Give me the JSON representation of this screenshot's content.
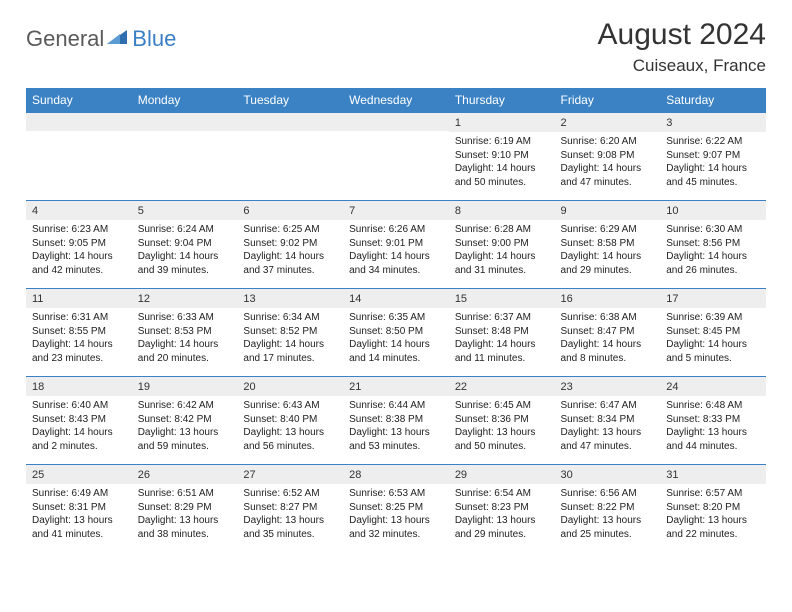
{
  "brand": {
    "part1": "General",
    "part2": "Blue"
  },
  "title": "August 2024",
  "location": "Cuiseaux, France",
  "colors": {
    "header_bg": "#3b82c4",
    "header_fg": "#ffffff",
    "daynum_bg": "#eeeeee",
    "cell_border": "#3b82c4",
    "text": "#222222",
    "brand_gray": "#5a5a5a",
    "brand_blue": "#3b7fc4"
  },
  "weekdays": [
    "Sunday",
    "Monday",
    "Tuesday",
    "Wednesday",
    "Thursday",
    "Friday",
    "Saturday"
  ],
  "weeks": [
    [
      {
        "n": "",
        "sr": "",
        "ss": "",
        "dl": ""
      },
      {
        "n": "",
        "sr": "",
        "ss": "",
        "dl": ""
      },
      {
        "n": "",
        "sr": "",
        "ss": "",
        "dl": ""
      },
      {
        "n": "",
        "sr": "",
        "ss": "",
        "dl": ""
      },
      {
        "n": "1",
        "sr": "Sunrise: 6:19 AM",
        "ss": "Sunset: 9:10 PM",
        "dl": "Daylight: 14 hours and 50 minutes."
      },
      {
        "n": "2",
        "sr": "Sunrise: 6:20 AM",
        "ss": "Sunset: 9:08 PM",
        "dl": "Daylight: 14 hours and 47 minutes."
      },
      {
        "n": "3",
        "sr": "Sunrise: 6:22 AM",
        "ss": "Sunset: 9:07 PM",
        "dl": "Daylight: 14 hours and 45 minutes."
      }
    ],
    [
      {
        "n": "4",
        "sr": "Sunrise: 6:23 AM",
        "ss": "Sunset: 9:05 PM",
        "dl": "Daylight: 14 hours and 42 minutes."
      },
      {
        "n": "5",
        "sr": "Sunrise: 6:24 AM",
        "ss": "Sunset: 9:04 PM",
        "dl": "Daylight: 14 hours and 39 minutes."
      },
      {
        "n": "6",
        "sr": "Sunrise: 6:25 AM",
        "ss": "Sunset: 9:02 PM",
        "dl": "Daylight: 14 hours and 37 minutes."
      },
      {
        "n": "7",
        "sr": "Sunrise: 6:26 AM",
        "ss": "Sunset: 9:01 PM",
        "dl": "Daylight: 14 hours and 34 minutes."
      },
      {
        "n": "8",
        "sr": "Sunrise: 6:28 AM",
        "ss": "Sunset: 9:00 PM",
        "dl": "Daylight: 14 hours and 31 minutes."
      },
      {
        "n": "9",
        "sr": "Sunrise: 6:29 AM",
        "ss": "Sunset: 8:58 PM",
        "dl": "Daylight: 14 hours and 29 minutes."
      },
      {
        "n": "10",
        "sr": "Sunrise: 6:30 AM",
        "ss": "Sunset: 8:56 PM",
        "dl": "Daylight: 14 hours and 26 minutes."
      }
    ],
    [
      {
        "n": "11",
        "sr": "Sunrise: 6:31 AM",
        "ss": "Sunset: 8:55 PM",
        "dl": "Daylight: 14 hours and 23 minutes."
      },
      {
        "n": "12",
        "sr": "Sunrise: 6:33 AM",
        "ss": "Sunset: 8:53 PM",
        "dl": "Daylight: 14 hours and 20 minutes."
      },
      {
        "n": "13",
        "sr": "Sunrise: 6:34 AM",
        "ss": "Sunset: 8:52 PM",
        "dl": "Daylight: 14 hours and 17 minutes."
      },
      {
        "n": "14",
        "sr": "Sunrise: 6:35 AM",
        "ss": "Sunset: 8:50 PM",
        "dl": "Daylight: 14 hours and 14 minutes."
      },
      {
        "n": "15",
        "sr": "Sunrise: 6:37 AM",
        "ss": "Sunset: 8:48 PM",
        "dl": "Daylight: 14 hours and 11 minutes."
      },
      {
        "n": "16",
        "sr": "Sunrise: 6:38 AM",
        "ss": "Sunset: 8:47 PM",
        "dl": "Daylight: 14 hours and 8 minutes."
      },
      {
        "n": "17",
        "sr": "Sunrise: 6:39 AM",
        "ss": "Sunset: 8:45 PM",
        "dl": "Daylight: 14 hours and 5 minutes."
      }
    ],
    [
      {
        "n": "18",
        "sr": "Sunrise: 6:40 AM",
        "ss": "Sunset: 8:43 PM",
        "dl": "Daylight: 14 hours and 2 minutes."
      },
      {
        "n": "19",
        "sr": "Sunrise: 6:42 AM",
        "ss": "Sunset: 8:42 PM",
        "dl": "Daylight: 13 hours and 59 minutes."
      },
      {
        "n": "20",
        "sr": "Sunrise: 6:43 AM",
        "ss": "Sunset: 8:40 PM",
        "dl": "Daylight: 13 hours and 56 minutes."
      },
      {
        "n": "21",
        "sr": "Sunrise: 6:44 AM",
        "ss": "Sunset: 8:38 PM",
        "dl": "Daylight: 13 hours and 53 minutes."
      },
      {
        "n": "22",
        "sr": "Sunrise: 6:45 AM",
        "ss": "Sunset: 8:36 PM",
        "dl": "Daylight: 13 hours and 50 minutes."
      },
      {
        "n": "23",
        "sr": "Sunrise: 6:47 AM",
        "ss": "Sunset: 8:34 PM",
        "dl": "Daylight: 13 hours and 47 minutes."
      },
      {
        "n": "24",
        "sr": "Sunrise: 6:48 AM",
        "ss": "Sunset: 8:33 PM",
        "dl": "Daylight: 13 hours and 44 minutes."
      }
    ],
    [
      {
        "n": "25",
        "sr": "Sunrise: 6:49 AM",
        "ss": "Sunset: 8:31 PM",
        "dl": "Daylight: 13 hours and 41 minutes."
      },
      {
        "n": "26",
        "sr": "Sunrise: 6:51 AM",
        "ss": "Sunset: 8:29 PM",
        "dl": "Daylight: 13 hours and 38 minutes."
      },
      {
        "n": "27",
        "sr": "Sunrise: 6:52 AM",
        "ss": "Sunset: 8:27 PM",
        "dl": "Daylight: 13 hours and 35 minutes."
      },
      {
        "n": "28",
        "sr": "Sunrise: 6:53 AM",
        "ss": "Sunset: 8:25 PM",
        "dl": "Daylight: 13 hours and 32 minutes."
      },
      {
        "n": "29",
        "sr": "Sunrise: 6:54 AM",
        "ss": "Sunset: 8:23 PM",
        "dl": "Daylight: 13 hours and 29 minutes."
      },
      {
        "n": "30",
        "sr": "Sunrise: 6:56 AM",
        "ss": "Sunset: 8:22 PM",
        "dl": "Daylight: 13 hours and 25 minutes."
      },
      {
        "n": "31",
        "sr": "Sunrise: 6:57 AM",
        "ss": "Sunset: 8:20 PM",
        "dl": "Daylight: 13 hours and 22 minutes."
      }
    ]
  ]
}
